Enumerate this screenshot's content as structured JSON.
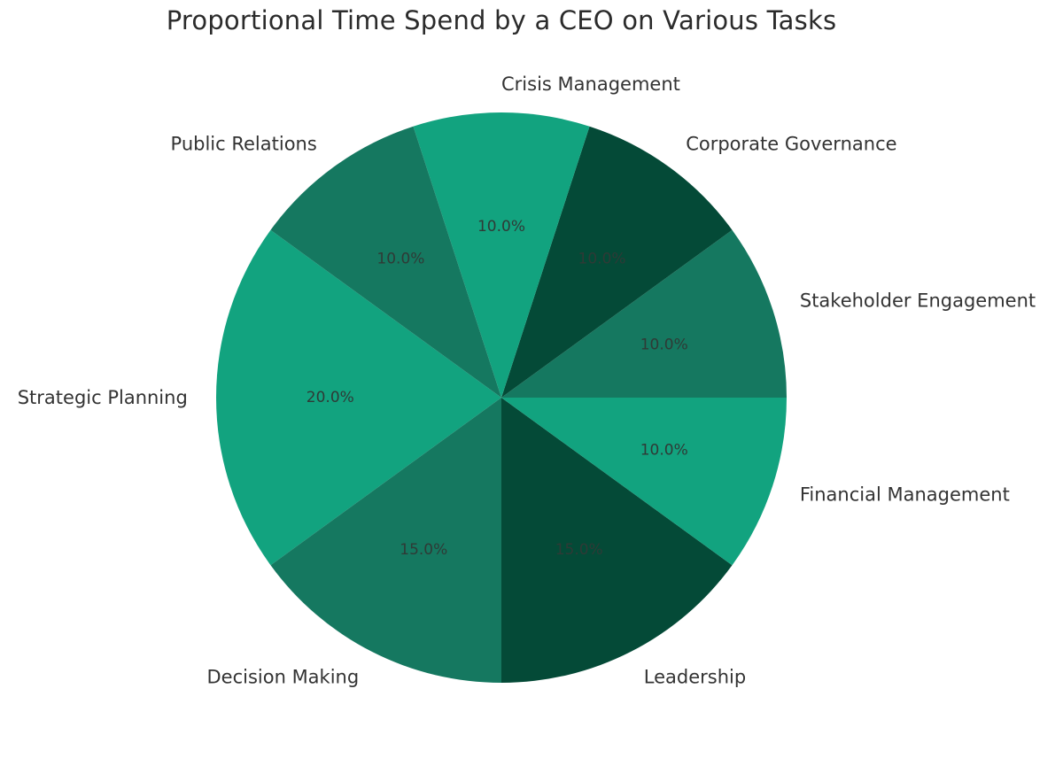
{
  "chart_data": {
    "type": "pie",
    "title": "Proportional Time Spend by a CEO on Various Tasks",
    "slices": [
      {
        "label": "Strategic Planning",
        "value": 20.0,
        "pct_label": "20.0%",
        "color": "#12a37f"
      },
      {
        "label": "Decision Making",
        "value": 15.0,
        "pct_label": "15.0%",
        "color": "#157860"
      },
      {
        "label": "Leadership",
        "value": 15.0,
        "pct_label": "15.0%",
        "color": "#044a37"
      },
      {
        "label": "Financial Management",
        "value": 10.0,
        "pct_label": "10.0%",
        "color": "#12a37f"
      },
      {
        "label": "Stakeholder Engagement",
        "value": 10.0,
        "pct_label": "10.0%",
        "color": "#157860"
      },
      {
        "label": "Corporate Governance",
        "value": 10.0,
        "pct_label": "10.0%",
        "color": "#044a37"
      },
      {
        "label": "Crisis Management",
        "value": 10.0,
        "pct_label": "10.0%",
        "color": "#12a37f"
      },
      {
        "label": "Public Relations",
        "value": 10.0,
        "pct_label": "10.0%",
        "color": "#157860"
      }
    ],
    "start_angle_deg": 144,
    "direction": "counterclockwise",
    "legend": "none"
  }
}
